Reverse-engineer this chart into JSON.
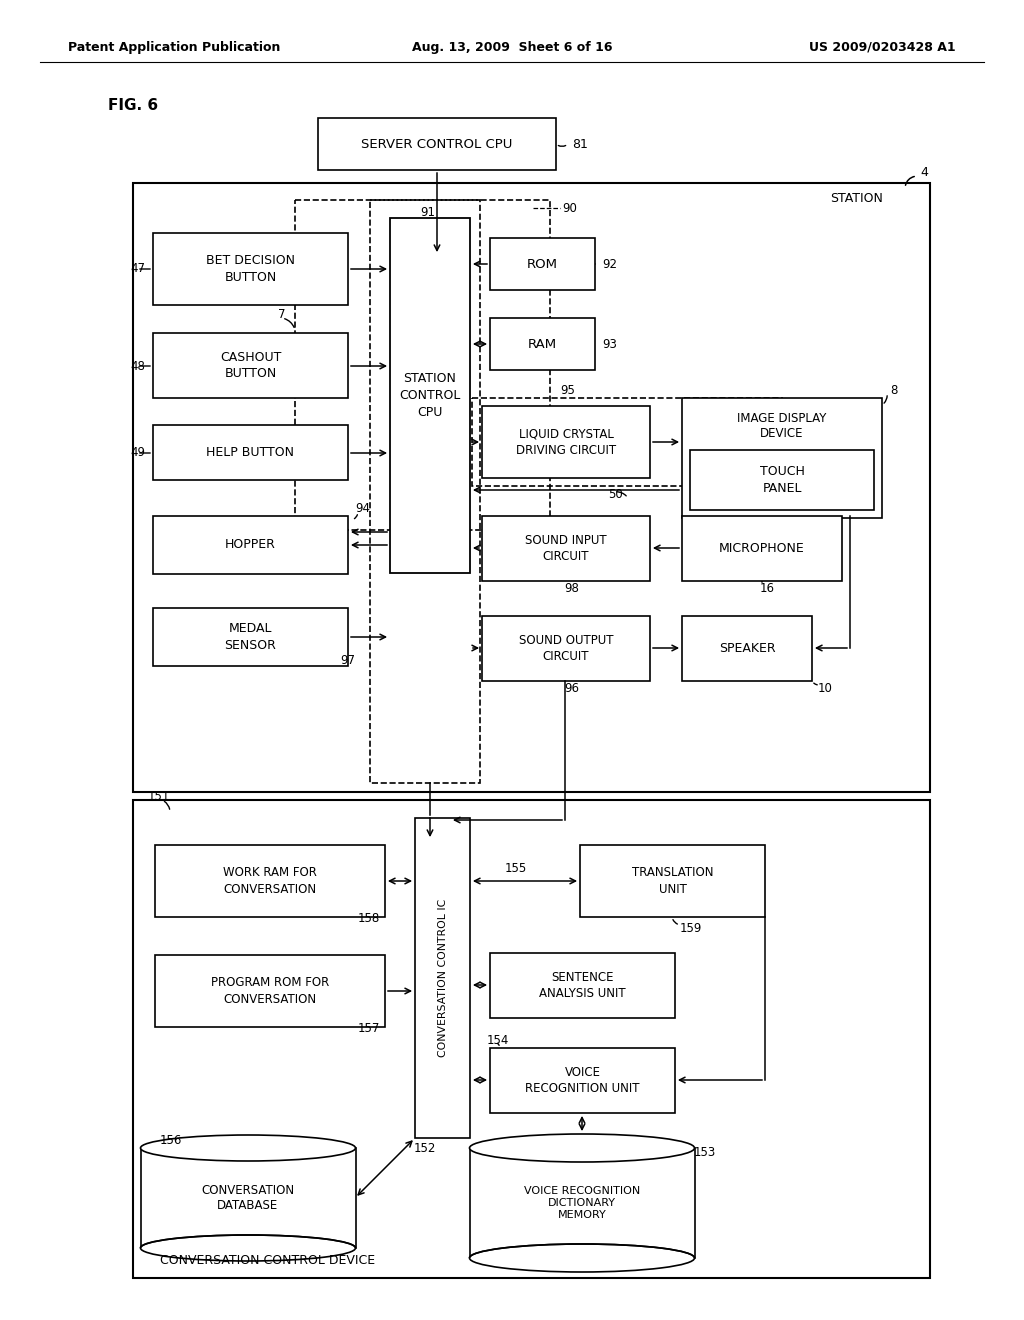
{
  "header_left": "Patent Application Publication",
  "header_mid": "Aug. 13, 2009  Sheet 6 of 16",
  "header_right": "US 2009/0203428 A1",
  "fig_label": "FIG. 6",
  "bg": "#ffffff"
}
